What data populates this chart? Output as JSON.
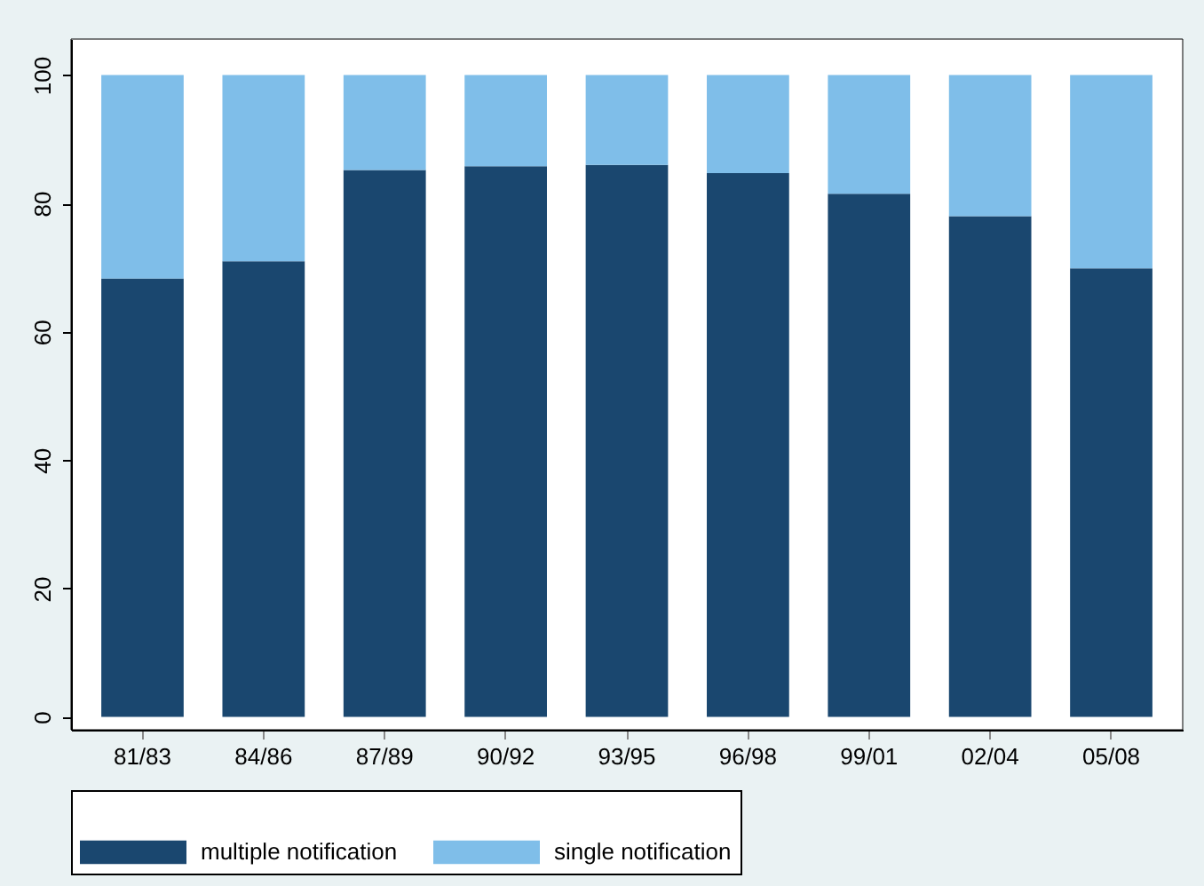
{
  "chart_data": {
    "type": "bar",
    "stacked": true,
    "categories": [
      "81/83",
      "84/86",
      "87/89",
      "90/92",
      "93/95",
      "96/98",
      "99/01",
      "02/04",
      "05/08"
    ],
    "series": [
      {
        "name": "multiple notification",
        "color": "#1a476f",
        "values": [
          68.3,
          71,
          85.2,
          85.8,
          86,
          84.7,
          81.5,
          78,
          69.9
        ]
      },
      {
        "name": "single notification",
        "color": "#7fbee9",
        "values": [
          31.7,
          29,
          14.8,
          14.2,
          14,
          15.3,
          18.5,
          22,
          30.1
        ]
      }
    ],
    "ylim": [
      -2,
      105.6
    ],
    "yticks": [
      0,
      20,
      40,
      60,
      80,
      100
    ],
    "grid": false,
    "legend": "bottom"
  }
}
